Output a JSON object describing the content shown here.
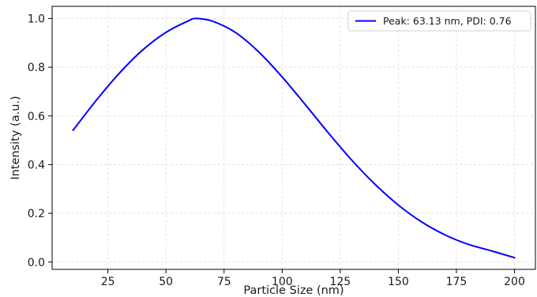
{
  "chart_data": {
    "type": "line",
    "title": "",
    "xlabel": "Particle Size (nm)",
    "ylabel": "Intensity (a.u.)",
    "xlim": [
      1,
      209
    ],
    "ylim": [
      -0.03,
      1.05
    ],
    "xticks": [
      25,
      50,
      75,
      100,
      125,
      150,
      175,
      200
    ],
    "yticks": [
      0.0,
      0.2,
      0.4,
      0.6,
      0.8,
      1.0
    ],
    "xtick_labels": [
      "25",
      "50",
      "75",
      "100",
      "125",
      "150",
      "175",
      "200"
    ],
    "ytick_labels": [
      "0.0",
      "0.2",
      "0.4",
      "0.6",
      "0.8",
      "1.0"
    ],
    "grid": true,
    "legend_position": "top-right",
    "series": [
      {
        "name": "Peak: 63.13 nm, PDI: 0.76",
        "color": "#0000ff",
        "x": [
          10,
          20,
          30,
          40,
          50,
          60,
          63.13,
          70,
          80,
          90,
          100,
          110,
          120,
          130,
          140,
          150,
          160,
          170,
          180,
          190,
          200
        ],
        "y": [
          0.541,
          0.664,
          0.776,
          0.871,
          0.943,
          0.992,
          1.0,
          0.989,
          0.942,
          0.862,
          0.76,
          0.646,
          0.529,
          0.418,
          0.319,
          0.234,
          0.165,
          0.112,
          0.073,
          0.046,
          0.018
        ]
      }
    ]
  }
}
